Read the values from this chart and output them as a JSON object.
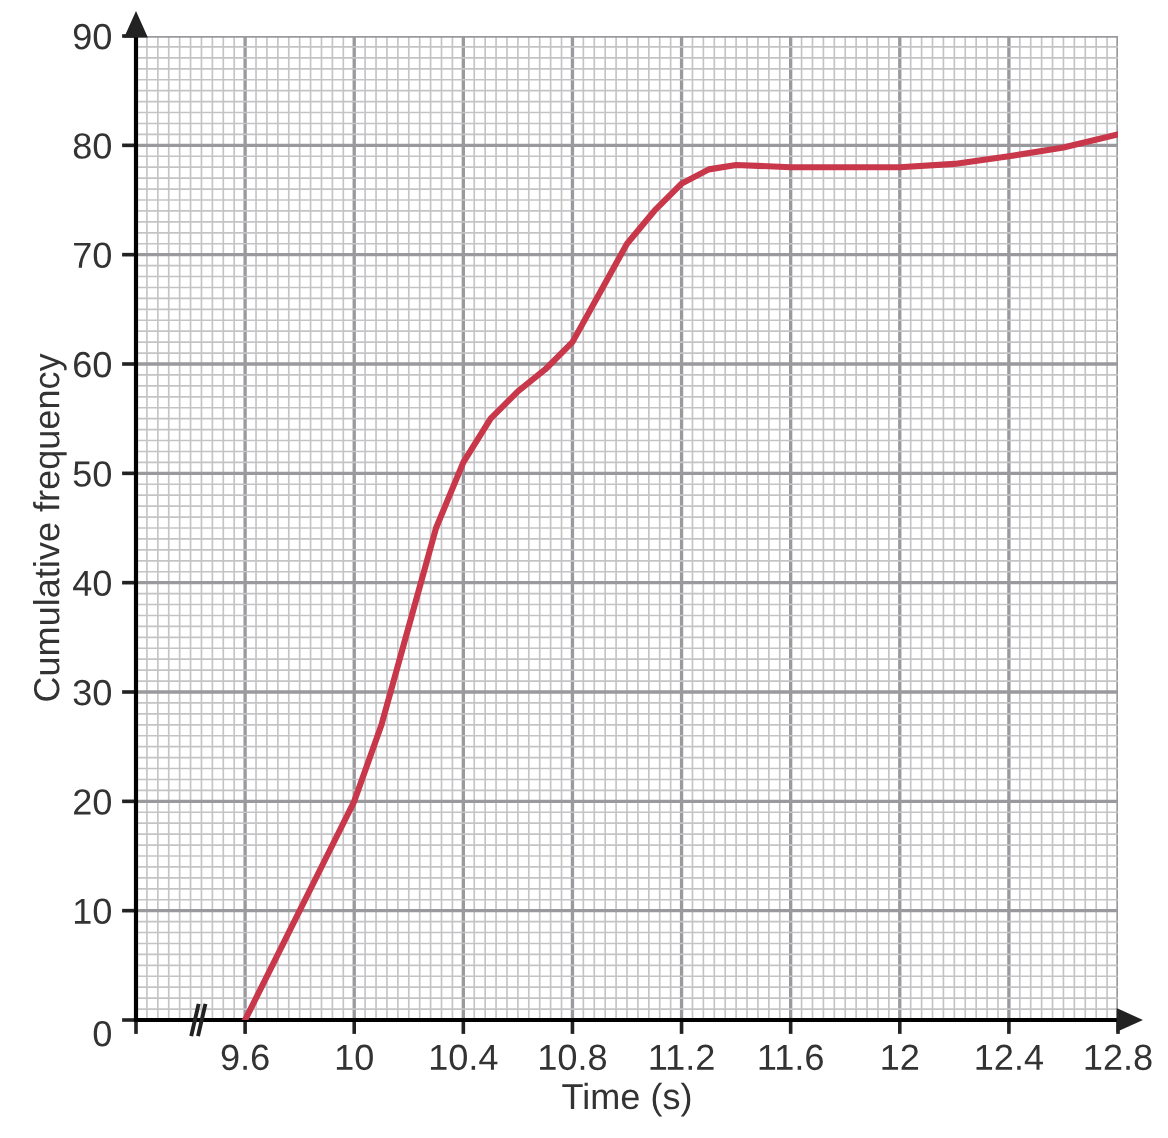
{
  "chart_data": {
    "type": "line",
    "xlabel": "Time (s)",
    "ylabel": "Cumulative frequency",
    "x": [
      9.6,
      9.7,
      9.8,
      9.9,
      10,
      10.1,
      10.2,
      10.3,
      10.4,
      10.5,
      10.6,
      10.7,
      10.8,
      10.9,
      11,
      11.1,
      11.2,
      11.3,
      11.4,
      11.6,
      11.8,
      12,
      12.2,
      12.4,
      12.6,
      12.8
    ],
    "series": [
      {
        "color": "#c8374a",
        "values": [
          0,
          5,
          10,
          15,
          20,
          27,
          36,
          45,
          51,
          55,
          57.5,
          59.5,
          62,
          66.5,
          71,
          74,
          76.5,
          77.8,
          78.2,
          78,
          78,
          78,
          78.3,
          79,
          79.8,
          81
        ]
      }
    ],
    "xlim": [
      9.2,
      12.8
    ],
    "ylim": [
      0,
      90
    ],
    "xticks": [
      {
        "value": 9.2,
        "label": null
      },
      9.6,
      10,
      10.4,
      10.8,
      11.2,
      11.6,
      12,
      12.4,
      12.8
    ],
    "yticks": [
      0,
      10,
      20,
      30,
      40,
      50,
      60,
      70,
      80,
      90
    ],
    "grid": true,
    "marker": "none",
    "line_style": "solid"
  }
}
